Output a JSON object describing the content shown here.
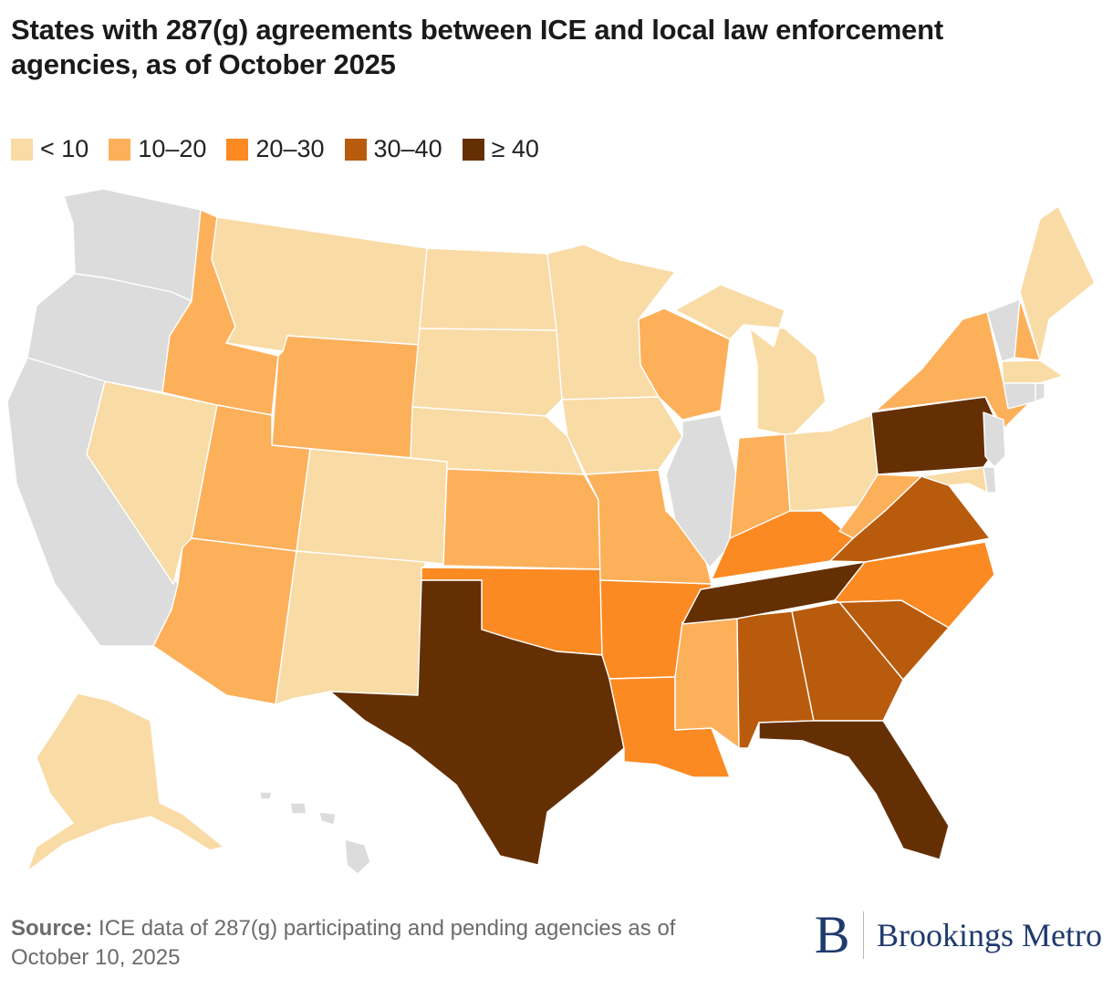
{
  "title": "States with 287(g) agreements between ICE and local law enforcement agencies, as of October 2025",
  "legend": [
    {
      "label": "< 10",
      "color": "#f9dba6"
    },
    {
      "label": "10–20",
      "color": "#fdb05a"
    },
    {
      "label": "20–30",
      "color": "#fc8a23"
    },
    {
      "label": "30–40",
      "color": "#b95b0c"
    },
    {
      "label": "≥ 40",
      "color": "#652f04"
    }
  ],
  "no_data_color": "#dcdcdc",
  "states": {
    "WA": "none",
    "OR": "none",
    "CA": "none",
    "IL": "none",
    "VT": "none",
    "CT": "none",
    "RI": "none",
    "NJ": "none",
    "DE": "none",
    "MT": "lt10",
    "ND": "lt10",
    "SD": "lt10",
    "MN": "lt10",
    "NE": "lt10",
    "IA": "lt10",
    "MI": "lt10",
    "NV": "lt10",
    "CO": "lt10",
    "NM": "lt10",
    "OH": "lt10",
    "ME": "lt10",
    "MA": "lt10",
    "MD": "lt10",
    "AK": "lt10",
    "ID": "10-20",
    "WY": "10-20",
    "UT": "10-20",
    "AZ": "10-20",
    "KS": "10-20",
    "MO": "10-20",
    "WI": "10-20",
    "IN": "10-20",
    "MS": "10-20",
    "WV": "10-20",
    "NY": "10-20",
    "NH": "10-20",
    "HI": "none",
    "OK": "20-30",
    "AR": "20-30",
    "LA": "20-30",
    "KY": "20-30",
    "NC": "20-30",
    "AL": "30-40",
    "GA": "30-40",
    "SC": "30-40",
    "VA": "30-40",
    "TX": "ge40",
    "TN": "ge40",
    "FL": "ge40",
    "PA": "ge40"
  },
  "bin_colors": {
    "none": "#dcdcdc",
    "lt10": "#f9dba6",
    "10-20": "#fdb05a",
    "20-30": "#fc8a23",
    "30-40": "#b95b0c",
    "ge40": "#652f04"
  },
  "source": {
    "label": "Source:",
    "text": " ICE data of 287(g) participating and pending agencies as of October 10, 2025"
  },
  "brand": {
    "logo_letter": "B",
    "name": "Brookings Metro"
  }
}
